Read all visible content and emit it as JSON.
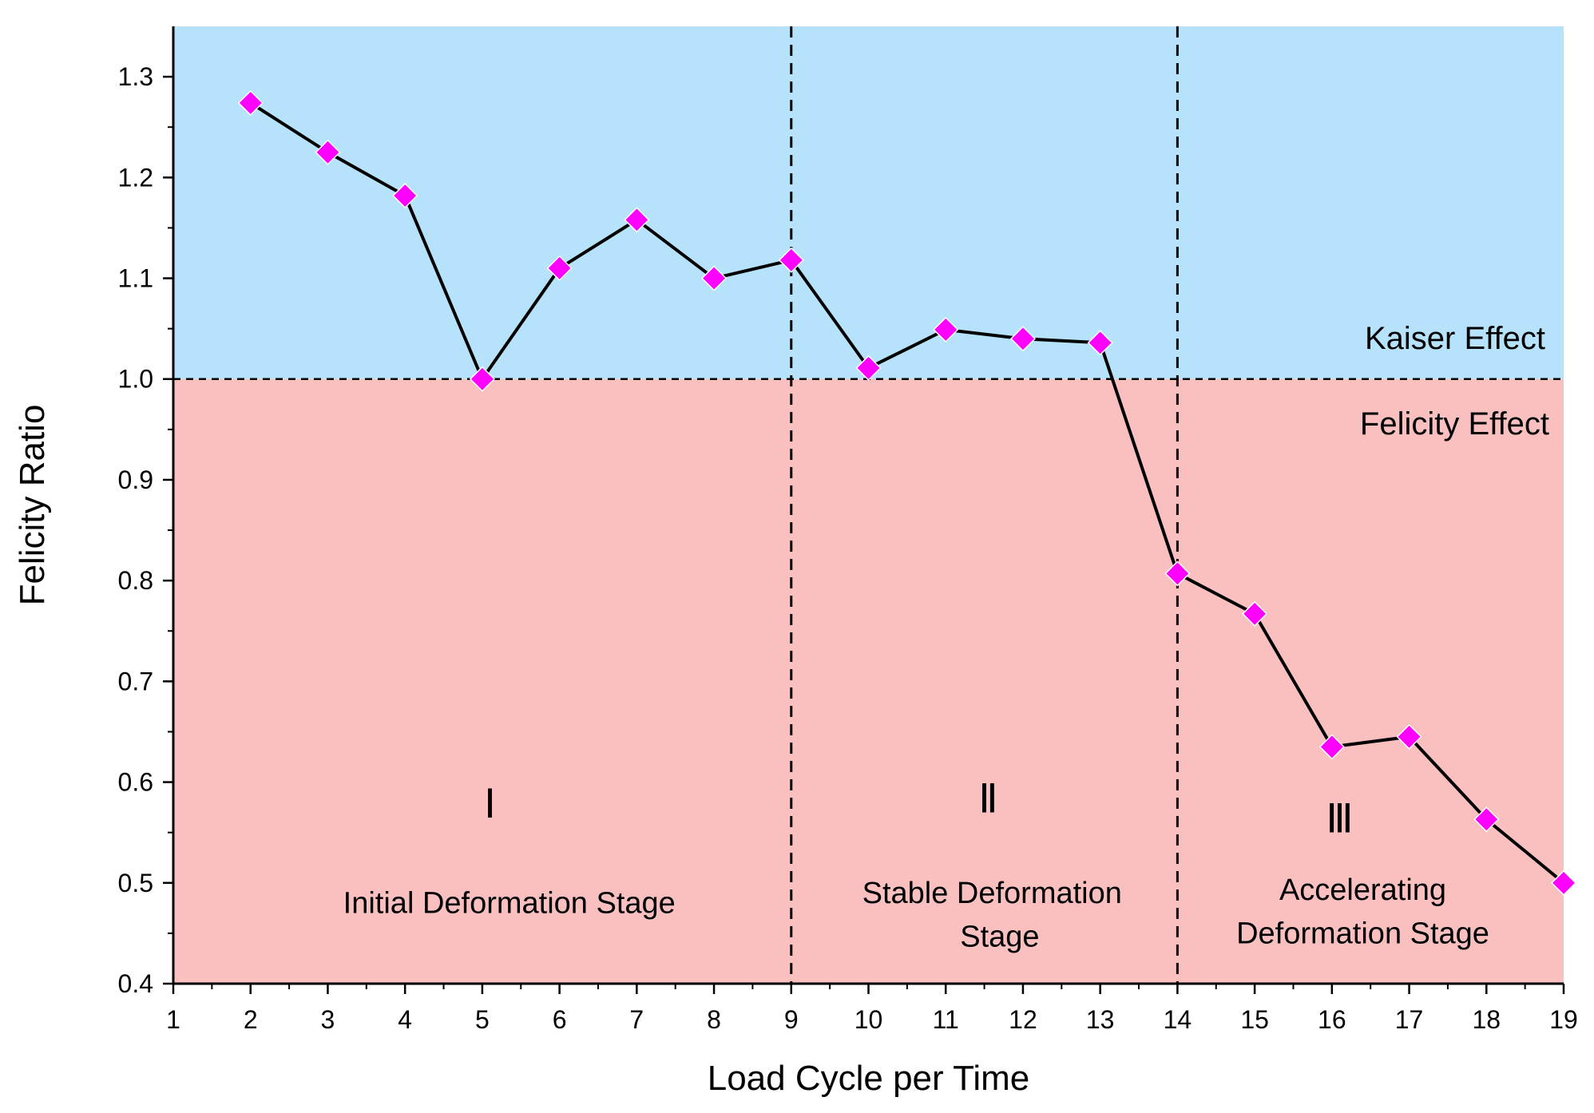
{
  "chart_data": {
    "type": "line",
    "xlabel": "Load Cycle per Time",
    "ylabel": "Felicity Ratio",
    "xlim": [
      1,
      19
    ],
    "ylim": [
      0.4,
      1.35
    ],
    "x_ticks": [
      1,
      2,
      3,
      4,
      5,
      6,
      7,
      8,
      9,
      10,
      11,
      12,
      13,
      14,
      15,
      16,
      17,
      18,
      19
    ],
    "y_ticks": [
      "0.4",
      "0.5",
      "0.6",
      "0.7",
      "0.8",
      "0.9",
      "1.0",
      "1.1",
      "1.2",
      "1.3"
    ],
    "series": [
      {
        "name": "Felicity Ratio",
        "x": [
          2,
          3,
          4,
          5,
          6,
          7,
          8,
          9,
          10,
          11,
          12,
          13,
          14,
          15,
          16,
          17,
          18,
          19
        ],
        "y": [
          1.274,
          1.225,
          1.182,
          1.0,
          1.11,
          1.158,
          1.1,
          1.118,
          1.011,
          1.049,
          1.04,
          1.036,
          0.807,
          0.767,
          0.635,
          0.645,
          0.563,
          0.5
        ],
        "line_color": "#000000",
        "marker": "diamond",
        "marker_color": "#ff00ff"
      }
    ],
    "regions": [
      {
        "label": "Kaiser Effect",
        "y_from": 1.0,
        "y_to": 1.35,
        "color": "#b6e3fb"
      },
      {
        "label": "Felicity Effect",
        "y_from": 0.4,
        "y_to": 1.0,
        "color": "#fac0c0"
      }
    ],
    "reference_line_y": 1.0,
    "stage_dividers_x": [
      9,
      14
    ],
    "stages": [
      {
        "numeral": "Ⅰ",
        "description": [
          "Initial Deformation Stage"
        ]
      },
      {
        "numeral": "Ⅱ",
        "description": [
          "Stable Deformation",
          "Stage"
        ]
      },
      {
        "numeral": "Ⅲ",
        "description": [
          "Accelerating",
          "Deformation Stage"
        ]
      }
    ]
  }
}
